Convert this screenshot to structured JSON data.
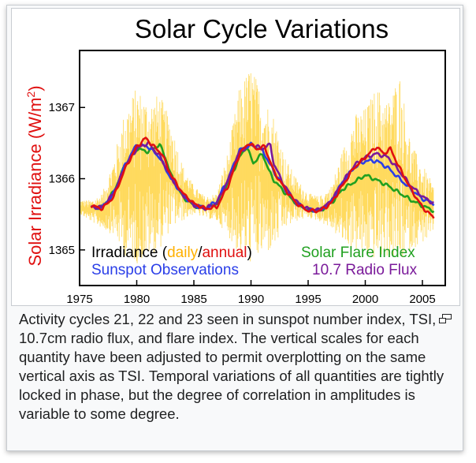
{
  "chart_data": {
    "type": "line",
    "title": "Solar Cycle Variations",
    "ylabel": "Solar Irradiance (W/m2)",
    "ylabel_main": "Solar Irradiance (W/m",
    "ylabel_sup": "2",
    "ylabel_end": ")",
    "xlim": [
      1975,
      2007
    ],
    "ylim": [
      1364.5,
      1367.8
    ],
    "x_ticks": [
      1975,
      1980,
      1985,
      1990,
      1995,
      2000,
      2005
    ],
    "y_ticks": [
      1365,
      1366,
      1367
    ],
    "legend": {
      "irradiance_prefix": "Irradiance (",
      "irradiance_daily": "daily",
      "irradiance_sep": "/",
      "irradiance_annual": "annual",
      "irradiance_suffix": ")",
      "sunspot": "Sunspot Observations",
      "flare": "Solar Flare Index",
      "radio": "10.7 Radio Flux"
    },
    "colors": {
      "daily": "#ffd23a",
      "annual": "#e01010",
      "sunspot": "#2a3ee8",
      "flare": "#20a020",
      "radio": "#7a1a9a",
      "title": "#000000",
      "ylabel": "#e01010"
    },
    "series": [
      {
        "name": "Irradiance (annual)",
        "color": "#e01010",
        "x": [
          1976.0,
          1977.0,
          1978.0,
          1979.0,
          1980.0,
          1980.8,
          1981.5,
          1982.2,
          1983.0,
          1984.0,
          1985.0,
          1986.0,
          1987.0,
          1988.0,
          1989.0,
          1989.8,
          1990.5,
          1991.2,
          1992.0,
          1993.0,
          1994.0,
          1995.0,
          1996.0,
          1997.0,
          1998.0,
          1999.0,
          2000.0,
          2001.0,
          2001.6,
          2002.2,
          2003.0,
          2004.0,
          2005.0,
          2006.0
        ],
        "y": [
          1365.62,
          1365.58,
          1365.75,
          1366.15,
          1366.45,
          1366.57,
          1366.45,
          1366.35,
          1366.05,
          1365.8,
          1365.65,
          1365.58,
          1365.6,
          1365.9,
          1366.35,
          1366.5,
          1366.42,
          1366.45,
          1366.1,
          1365.85,
          1365.65,
          1365.55,
          1365.55,
          1365.65,
          1365.9,
          1366.15,
          1366.3,
          1366.45,
          1366.35,
          1366.42,
          1366.15,
          1365.85,
          1365.6,
          1365.45
        ]
      },
      {
        "name": "Sunspot Observations",
        "color": "#2a3ee8",
        "x": [
          1976.0,
          1977.0,
          1978.0,
          1979.0,
          1980.0,
          1981.0,
          1982.0,
          1983.0,
          1984.0,
          1985.0,
          1986.0,
          1987.0,
          1988.0,
          1989.0,
          1990.0,
          1991.0,
          1992.0,
          1993.0,
          1994.0,
          1995.0,
          1996.0,
          1997.0,
          1998.0,
          1999.0,
          2000.0,
          2001.0,
          2002.0,
          2003.0,
          2004.0,
          2005.0,
          2006.0
        ],
        "y": [
          1365.6,
          1365.6,
          1365.8,
          1366.2,
          1366.48,
          1366.45,
          1366.3,
          1366.0,
          1365.78,
          1365.63,
          1365.58,
          1365.68,
          1366.0,
          1366.4,
          1366.48,
          1366.4,
          1366.1,
          1365.85,
          1365.65,
          1365.56,
          1365.55,
          1365.68,
          1365.95,
          1366.15,
          1366.25,
          1366.25,
          1366.15,
          1366.0,
          1365.85,
          1365.72,
          1365.65
        ]
      },
      {
        "name": "Solar Flare Index",
        "color": "#20a020",
        "x": [
          1976.0,
          1977.0,
          1978.0,
          1979.0,
          1980.0,
          1981.0,
          1982.0,
          1982.5,
          1983.0,
          1984.0,
          1985.0,
          1986.0,
          1987.0,
          1988.0,
          1989.0,
          1989.6,
          1990.2,
          1991.0,
          1991.6,
          1992.0,
          1993.0,
          1994.0,
          1995.0,
          1996.0,
          1997.0,
          1998.0,
          1999.0,
          2000.0,
          2001.0,
          2002.0,
          2003.0,
          2004.0,
          2005.0,
          2006.0
        ],
        "y": [
          1365.6,
          1365.6,
          1365.82,
          1366.2,
          1366.42,
          1366.38,
          1366.48,
          1366.3,
          1366.05,
          1365.75,
          1365.62,
          1365.58,
          1365.65,
          1365.95,
          1366.3,
          1366.45,
          1366.22,
          1366.35,
          1366.1,
          1365.98,
          1365.8,
          1365.65,
          1365.56,
          1365.55,
          1365.65,
          1365.85,
          1365.95,
          1366.05,
          1365.98,
          1365.9,
          1365.8,
          1365.7,
          1365.62,
          1365.55
        ]
      },
      {
        "name": "10.7 Radio Flux",
        "color": "#7a1a9a",
        "x": [
          1976.0,
          1977.0,
          1978.0,
          1979.0,
          1980.0,
          1981.0,
          1982.0,
          1983.0,
          1984.0,
          1985.0,
          1986.0,
          1987.0,
          1988.0,
          1989.0,
          1990.0,
          1991.0,
          1991.7,
          1992.0,
          1993.0,
          1994.0,
          1995.0,
          1996.0,
          1997.0,
          1998.0,
          1999.0,
          2000.0,
          2001.0,
          2002.0,
          2003.0,
          2004.0,
          2005.0,
          2006.0
        ],
        "y": [
          1365.6,
          1365.6,
          1365.8,
          1366.18,
          1366.42,
          1366.5,
          1366.32,
          1366.02,
          1365.78,
          1365.63,
          1365.58,
          1365.66,
          1365.98,
          1366.38,
          1366.48,
          1366.42,
          1366.48,
          1366.2,
          1365.88,
          1365.67,
          1365.57,
          1365.56,
          1365.68,
          1365.95,
          1366.18,
          1366.3,
          1366.35,
          1366.3,
          1366.1,
          1365.9,
          1365.75,
          1365.65
        ]
      }
    ],
    "daily_envelope": {
      "name": "Irradiance (daily)",
      "color": "#ffd23a",
      "x": [
        1975.0,
        1976.0,
        1977.0,
        1978.0,
        1979.0,
        1980.0,
        1981.0,
        1982.0,
        1983.0,
        1984.0,
        1985.0,
        1986.0,
        1987.0,
        1988.0,
        1989.0,
        1990.0,
        1991.0,
        1992.0,
        1993.0,
        1994.0,
        1995.0,
        1996.0,
        1997.0,
        1998.0,
        1999.0,
        2000.0,
        2001.0,
        2002.0,
        2003.0,
        2004.0,
        2005.0,
        2006.0
      ],
      "y_high": [
        1365.7,
        1365.7,
        1365.8,
        1366.3,
        1367.0,
        1367.3,
        1367.1,
        1367.2,
        1366.8,
        1366.2,
        1365.9,
        1365.75,
        1365.8,
        1366.4,
        1367.3,
        1367.6,
        1367.2,
        1366.9,
        1366.3,
        1366.0,
        1365.8,
        1365.75,
        1365.9,
        1366.4,
        1366.9,
        1367.0,
        1367.3,
        1367.1,
        1367.5,
        1366.5,
        1366.2,
        1365.9
      ],
      "y_low": [
        1365.5,
        1365.4,
        1365.3,
        1365.2,
        1364.9,
        1364.8,
        1364.9,
        1365.0,
        1365.3,
        1365.4,
        1365.5,
        1365.45,
        1365.4,
        1365.2,
        1364.9,
        1364.8,
        1364.9,
        1365.0,
        1365.3,
        1365.4,
        1365.45,
        1365.4,
        1365.3,
        1365.1,
        1365.0,
        1364.9,
        1364.85,
        1364.9,
        1364.8,
        1365.0,
        1365.1,
        1365.2
      ]
    }
  },
  "caption": "Activity cycles 21, 22 and 23 seen in sunspot number index, TSI, 10.7cm radio flux, and flare index. The vertical scales for each quantity have been adjusted to permit overplotting on the same vertical axis as TSI. Temporal variations of all quantities are tightly locked in phase, but the degree of correlation in amplitudes is variable to some degree.",
  "icons": {
    "enlarge": "magnify-clip-icon"
  }
}
